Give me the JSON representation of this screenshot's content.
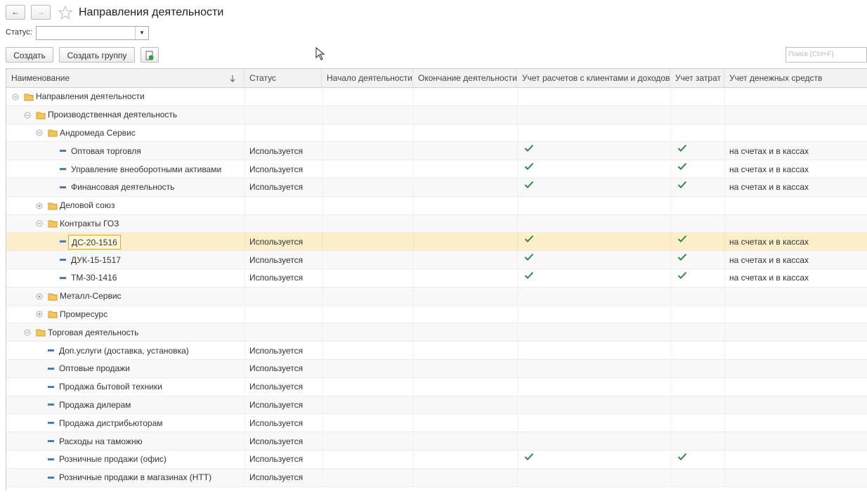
{
  "header": {
    "title": "Направления деятельности"
  },
  "filter": {
    "label": "Статус:"
  },
  "toolbar": {
    "buttons": [
      "Создать",
      "Создать группу"
    ],
    "search_placeholder": "Поиск (Ctrl+F)"
  },
  "table": {
    "columns": [
      "Наименование",
      "Статус",
      "Начало деятельности",
      "Окончание деятельности",
      "Учет расчетов с клиентами и доходов",
      "Учет затрат",
      "Учет денежных средств"
    ],
    "rows": [
      {
        "name": "Направления деятельности",
        "level": 0,
        "kind": "group",
        "expanded": true
      },
      {
        "name": "Производственная деятельность",
        "level": 1,
        "kind": "group",
        "expanded": true
      },
      {
        "name": "Андромеда Сервис",
        "level": 2,
        "kind": "group",
        "expanded": true
      },
      {
        "name": "Оптовая торговля",
        "level": 3,
        "kind": "item",
        "status": "Используется",
        "clients": true,
        "costs": true,
        "cash": "на счетах и в кассах"
      },
      {
        "name": "Управление внеоборотными активами",
        "level": 3,
        "kind": "item",
        "status": "Используется",
        "clients": true,
        "costs": true,
        "cash": "на счетах и в кассах"
      },
      {
        "name": "Финансовая деятельность",
        "level": 3,
        "kind": "item",
        "status": "Используется",
        "clients": true,
        "costs": true,
        "cash": "на счетах и в кассах"
      },
      {
        "name": "Деловой союз",
        "level": 2,
        "kind": "group",
        "expanded": false
      },
      {
        "name": "Контракты ГОЗ",
        "level": 2,
        "kind": "group",
        "expanded": true
      },
      {
        "name": "ДС-20-1516",
        "level": 3,
        "kind": "item",
        "selected": true,
        "status": "Используется",
        "clients": true,
        "costs": true,
        "cash": "на счетах и в кассах"
      },
      {
        "name": "ДУК-15-1517",
        "level": 3,
        "kind": "item",
        "status": "Используется",
        "clients": true,
        "costs": true,
        "cash": "на счетах и в кассах"
      },
      {
        "name": "ТМ-30-1416",
        "level": 3,
        "kind": "item",
        "status": "Используется",
        "clients": true,
        "costs": true,
        "cash": "на счетах и в кассах"
      },
      {
        "name": "Металл-Сервис",
        "level": 2,
        "kind": "group",
        "expanded": false
      },
      {
        "name": "Промресурс",
        "level": 2,
        "kind": "group",
        "expanded": false
      },
      {
        "name": "Торговая деятельность",
        "level": 1,
        "kind": "group",
        "expanded": true
      },
      {
        "name": "Доп.услуги (доставка, установка)",
        "level": 2,
        "kind": "item",
        "status": "Используется"
      },
      {
        "name": "Оптовые продажи",
        "level": 2,
        "kind": "item",
        "status": "Используется"
      },
      {
        "name": "Продажа бытовой техники",
        "level": 2,
        "kind": "item",
        "status": "Используется"
      },
      {
        "name": "Продажа дилерам",
        "level": 2,
        "kind": "item",
        "status": "Используется"
      },
      {
        "name": "Продажа дистрибьюторам",
        "level": 2,
        "kind": "item",
        "status": "Используется"
      },
      {
        "name": "Расходы на таможню",
        "level": 2,
        "kind": "item",
        "status": "Используется"
      },
      {
        "name": "Розничные продажи (офис)",
        "level": 2,
        "kind": "item",
        "status": "Используется",
        "clients": true,
        "costs": true
      },
      {
        "name": "Розничные продажи в магазинах (НТТ)",
        "level": 2,
        "kind": "item",
        "status": "Используется"
      }
    ]
  }
}
